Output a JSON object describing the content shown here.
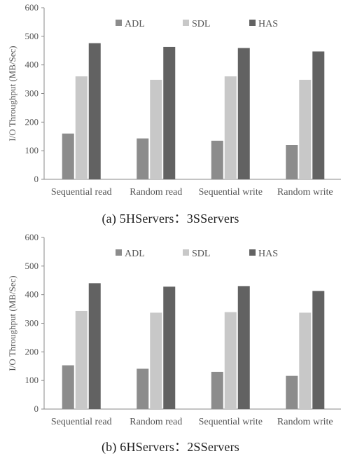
{
  "chart_data": [
    {
      "type": "bar",
      "caption": "(a)  5HServers：3SServers",
      "ylabel": "I/O Throughput (MB/Sec)",
      "ylim": [
        0,
        600
      ],
      "yticks": [
        0,
        100,
        200,
        300,
        400,
        500,
        600
      ],
      "categories": [
        "Sequential read",
        "Random read",
        "Sequential write",
        "Random write"
      ],
      "grid": false,
      "legend_position": "top",
      "series": [
        {
          "name": "ADL",
          "color": "#8c8c8c",
          "values": [
            160,
            143,
            135,
            120
          ]
        },
        {
          "name": "SDL",
          "color": "#c8c8c8",
          "values": [
            360,
            348,
            360,
            348
          ]
        },
        {
          "name": "HAS",
          "color": "#626262",
          "values": [
            476,
            463,
            459,
            447
          ]
        }
      ]
    },
    {
      "type": "bar",
      "caption": "(b)  6HServers：2SServers",
      "ylabel": "I/O Throughput (MB/Sec)",
      "ylim": [
        0,
        600
      ],
      "yticks": [
        0,
        100,
        200,
        300,
        400,
        500,
        600
      ],
      "categories": [
        "Sequential read",
        "Random read",
        "Sequential write",
        "Random write"
      ],
      "grid": false,
      "legend_position": "top",
      "series": [
        {
          "name": "ADL",
          "color": "#8c8c8c",
          "values": [
            153,
            141,
            130,
            116
          ]
        },
        {
          "name": "SDL",
          "color": "#c8c8c8",
          "values": [
            343,
            337,
            339,
            337
          ]
        },
        {
          "name": "HAS",
          "color": "#626262",
          "values": [
            440,
            428,
            430,
            413
          ]
        }
      ]
    }
  ]
}
